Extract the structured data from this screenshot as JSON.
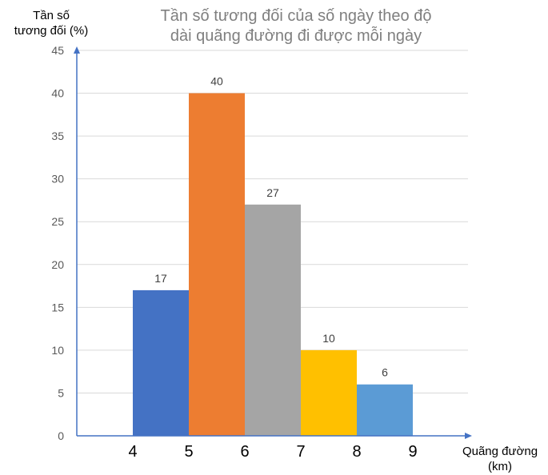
{
  "chart_data": {
    "type": "bar",
    "title_lines": [
      "Tần số tương đối của số ngày theo độ",
      "dài quãng đường đi được mỗi ngày"
    ],
    "ylabel_lines": [
      "Tần số",
      "tương đối (%)"
    ],
    "xlabel_lines": [
      "Quãng đường",
      "(km)"
    ],
    "ylim": [
      0,
      45
    ],
    "yticks": [
      0,
      5,
      10,
      15,
      20,
      25,
      30,
      35,
      40,
      45
    ],
    "xticks": [
      4,
      5,
      6,
      7,
      8,
      9
    ],
    "bins": [
      {
        "from": 4,
        "to": 5,
        "value": 17,
        "color": "#4472c4"
      },
      {
        "from": 5,
        "to": 6,
        "value": 40,
        "color": "#ed7d31"
      },
      {
        "from": 6,
        "to": 7,
        "value": 27,
        "color": "#a5a5a5"
      },
      {
        "from": 7,
        "to": 8,
        "value": 10,
        "color": "#ffc000"
      },
      {
        "from": 8,
        "to": 9,
        "value": 6,
        "color": "#5b9bd5"
      }
    ],
    "grid": true,
    "axis_color": "#4472c4",
    "grid_color": "#d9d9d9"
  }
}
